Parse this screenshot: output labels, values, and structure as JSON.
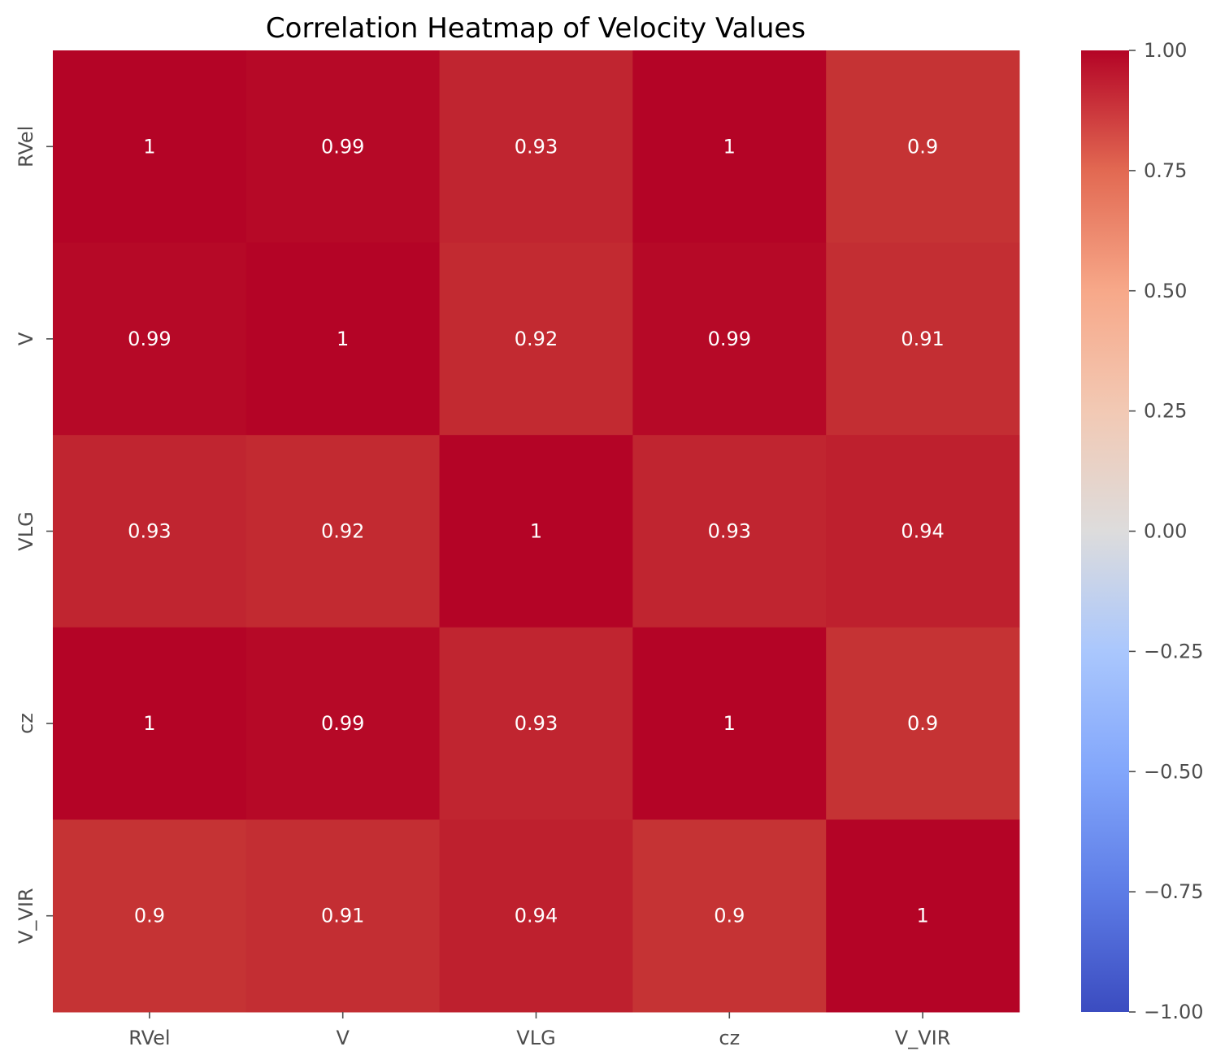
{
  "chart_data": {
    "type": "heatmap",
    "title": "Correlation Heatmap of Velocity Values",
    "xlabel": "",
    "ylabel": "",
    "x_categories": [
      "RVel",
      "V",
      "VLG",
      "cz",
      "V_VIR"
    ],
    "y_categories": [
      "RVel",
      "V",
      "VLG",
      "cz",
      "V_VIR"
    ],
    "values": [
      [
        1.0,
        0.99,
        0.93,
        1.0,
        0.9
      ],
      [
        0.99,
        1.0,
        0.92,
        0.99,
        0.91
      ],
      [
        0.93,
        0.92,
        1.0,
        0.93,
        0.94
      ],
      [
        1.0,
        0.99,
        0.93,
        1.0,
        0.9
      ],
      [
        0.9,
        0.91,
        0.94,
        0.9,
        1.0
      ]
    ],
    "annotations": [
      [
        "1",
        "0.99",
        "0.93",
        "1",
        "0.9"
      ],
      [
        "0.99",
        "1",
        "0.92",
        "0.99",
        "0.91"
      ],
      [
        "0.93",
        "0.92",
        "1",
        "0.93",
        "0.94"
      ],
      [
        "1",
        "0.99",
        "0.93",
        "1",
        "0.9"
      ],
      [
        "0.9",
        "0.91",
        "0.94",
        "0.9",
        "1"
      ]
    ],
    "colormap": "coolwarm",
    "color_range": [
      -1.0,
      1.0
    ],
    "colorbar_ticks": [
      1.0,
      0.75,
      0.5,
      0.25,
      0.0,
      -0.25,
      -0.5,
      -0.75,
      -1.0
    ],
    "colorbar_tick_labels": [
      "1.00",
      "0.75",
      "0.50",
      "0.25",
      "0.00",
      "−0.25",
      "−0.50",
      "−0.75",
      "−1.00"
    ],
    "colors": {
      "low": "#3b4cc0",
      "mid": "#dddddd",
      "high": "#b40426"
    }
  }
}
